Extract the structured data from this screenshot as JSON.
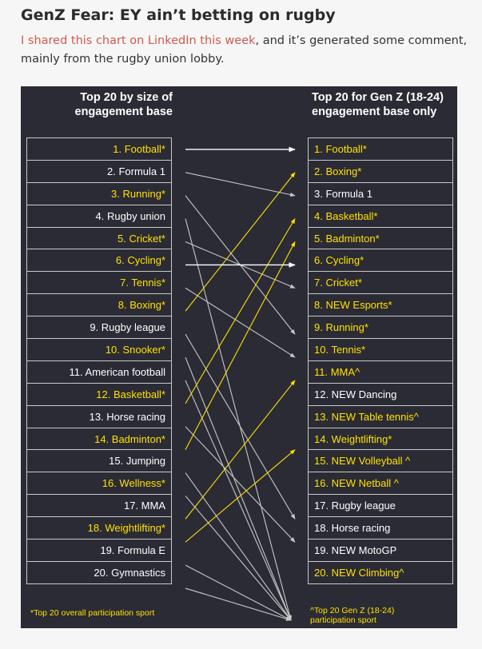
{
  "article": {
    "title": "GenZ Fear: EY ain’t betting on rugby",
    "intro_link": "I shared this chart on LinkedIn this week",
    "intro_rest": ", and it’s generated some comment, mainly from the rugby union lobby."
  },
  "chart": {
    "left_heading": "Top 20 by size of engagement base",
    "right_heading": "Top 20 for Gen Z (18-24) engagement base only",
    "left_footnote": "*Top 20 overall participation sport",
    "right_footnote": "^Top 20 Gen Z (18-24) participation sport",
    "colors": {
      "yellow": "#ffe100",
      "white": "#ffffff",
      "grey": "#c8c8c8",
      "background": "#2b2b35"
    },
    "left_items": [
      {
        "label": "1. Football*",
        "highlight": true
      },
      {
        "label": "2. Formula 1",
        "highlight": false
      },
      {
        "label": "3. Running*",
        "highlight": true
      },
      {
        "label": "4. Rugby union",
        "highlight": false
      },
      {
        "label": "5. Cricket*",
        "highlight": true
      },
      {
        "label": "6. Cycling*",
        "highlight": true
      },
      {
        "label": "7. Tennis*",
        "highlight": true
      },
      {
        "label": "8. Boxing*",
        "highlight": true
      },
      {
        "label": "9. Rugby league",
        "highlight": false
      },
      {
        "label": "10. Snooker*",
        "highlight": true
      },
      {
        "label": "11. American football",
        "highlight": false
      },
      {
        "label": "12. Basketball*",
        "highlight": true
      },
      {
        "label": "13. Horse racing",
        "highlight": false
      },
      {
        "label": "14. Badminton*",
        "highlight": true
      },
      {
        "label": "15. Jumping",
        "highlight": false
      },
      {
        "label": "16. Wellness*",
        "highlight": true
      },
      {
        "label": "17. MMA",
        "highlight": false
      },
      {
        "label": "18. Weightlifting*",
        "highlight": true
      },
      {
        "label": "19. Formula E",
        "highlight": false
      },
      {
        "label": "20. Gymnastics",
        "highlight": false
      }
    ],
    "right_items": [
      {
        "label": "1. Football*",
        "highlight": true
      },
      {
        "label": "2. Boxing*",
        "highlight": true
      },
      {
        "label": "3. Formula 1",
        "highlight": false
      },
      {
        "label": "4. Basketball*",
        "highlight": true
      },
      {
        "label": "5. Badminton*",
        "highlight": true
      },
      {
        "label": "6. Cycling*",
        "highlight": true
      },
      {
        "label": "7. Cricket*",
        "highlight": true
      },
      {
        "label": "8. NEW Esports*",
        "highlight": true
      },
      {
        "label": "9. Running*",
        "highlight": true
      },
      {
        "label": "10. Tennis*",
        "highlight": true
      },
      {
        "label": "11. MMA^",
        "highlight": true
      },
      {
        "label": "12. NEW Dancing",
        "highlight": false
      },
      {
        "label": "13. NEW Table tennis^",
        "highlight": true
      },
      {
        "label": "14. Weightlifting*",
        "highlight": true
      },
      {
        "label": "15. NEW Volleyball ^",
        "highlight": true
      },
      {
        "label": "16. NEW Netball ^",
        "highlight": true
      },
      {
        "label": "17. Rugby league",
        "highlight": false
      },
      {
        "label": "18. Horse racing",
        "highlight": false
      },
      {
        "label": "19. NEW MotoGP",
        "highlight": false
      },
      {
        "label": "20. NEW Climbing^",
        "highlight": true
      }
    ],
    "connections": [
      {
        "from": 1,
        "to": 1,
        "color": "white"
      },
      {
        "from": 2,
        "to": 3,
        "color": "grey"
      },
      {
        "from": 3,
        "to": 9,
        "color": "grey"
      },
      {
        "from": 4,
        "to": "out",
        "color": "grey"
      },
      {
        "from": 5,
        "to": 7,
        "color": "grey"
      },
      {
        "from": 6,
        "to": 6,
        "color": "white"
      },
      {
        "from": 7,
        "to": 10,
        "color": "grey"
      },
      {
        "from": 8,
        "to": 2,
        "color": "yellow"
      },
      {
        "from": 9,
        "to": 17,
        "color": "grey"
      },
      {
        "from": 10,
        "to": "out",
        "color": "grey"
      },
      {
        "from": 11,
        "to": "out",
        "color": "grey"
      },
      {
        "from": 12,
        "to": 4,
        "color": "yellow"
      },
      {
        "from": 13,
        "to": 18,
        "color": "grey"
      },
      {
        "from": 14,
        "to": 5,
        "color": "yellow"
      },
      {
        "from": 15,
        "to": "out",
        "color": "grey"
      },
      {
        "from": 16,
        "to": "out",
        "color": "grey"
      },
      {
        "from": 17,
        "to": 11,
        "color": "yellow"
      },
      {
        "from": 18,
        "to": 14,
        "color": "yellow"
      },
      {
        "from": 19,
        "to": "out",
        "color": "grey"
      },
      {
        "from": 20,
        "to": "out",
        "color": "grey"
      }
    ]
  }
}
